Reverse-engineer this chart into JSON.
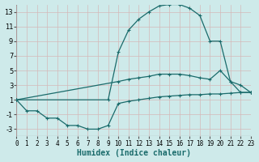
{
  "xlabel": "Humidex (Indice chaleur)",
  "bg_color": "#ceeaea",
  "grid_color": "#b8d8d8",
  "line_color": "#1a6b6b",
  "xlim": [
    0,
    23
  ],
  "ylim": [
    -4,
    14
  ],
  "xticks": [
    0,
    1,
    2,
    3,
    4,
    5,
    6,
    7,
    8,
    9,
    10,
    11,
    12,
    13,
    14,
    15,
    16,
    17,
    18,
    19,
    20,
    21,
    22,
    23
  ],
  "yticks": [
    -3,
    -1,
    1,
    3,
    5,
    7,
    9,
    11,
    13
  ],
  "line1_x": [
    0,
    1,
    2,
    3,
    4,
    5,
    6,
    7,
    8,
    9,
    10,
    11,
    12,
    13,
    14,
    15,
    16,
    17,
    18,
    19,
    20,
    21,
    22,
    23
  ],
  "line1_y": [
    1,
    -0.5,
    -0.5,
    -1.5,
    -1.5,
    -2.5,
    -2.5,
    -3,
    -3,
    -2.5,
    0.5,
    0.8,
    1.0,
    1.2,
    1.4,
    1.5,
    1.6,
    1.7,
    1.7,
    1.8,
    1.8,
    1.9,
    2.0,
    2.0
  ],
  "line2_x": [
    0,
    10,
    11,
    12,
    13,
    14,
    15,
    16,
    17,
    18,
    19,
    20,
    21,
    22,
    23
  ],
  "line2_y": [
    1,
    3.5,
    3.8,
    4.0,
    4.2,
    4.5,
    4.5,
    4.5,
    4.3,
    4.0,
    3.8,
    5.0,
    3.5,
    3.0,
    2.0
  ],
  "line3_x": [
    0,
    9,
    10,
    11,
    12,
    13,
    14,
    15,
    16,
    17,
    18,
    19,
    20,
    21,
    22,
    23
  ],
  "line3_y": [
    1,
    1.0,
    7.5,
    10.5,
    12.0,
    13.0,
    13.8,
    14.0,
    14.0,
    13.5,
    12.5,
    9.0,
    9.0,
    3.5,
    2.0,
    2.0
  ]
}
